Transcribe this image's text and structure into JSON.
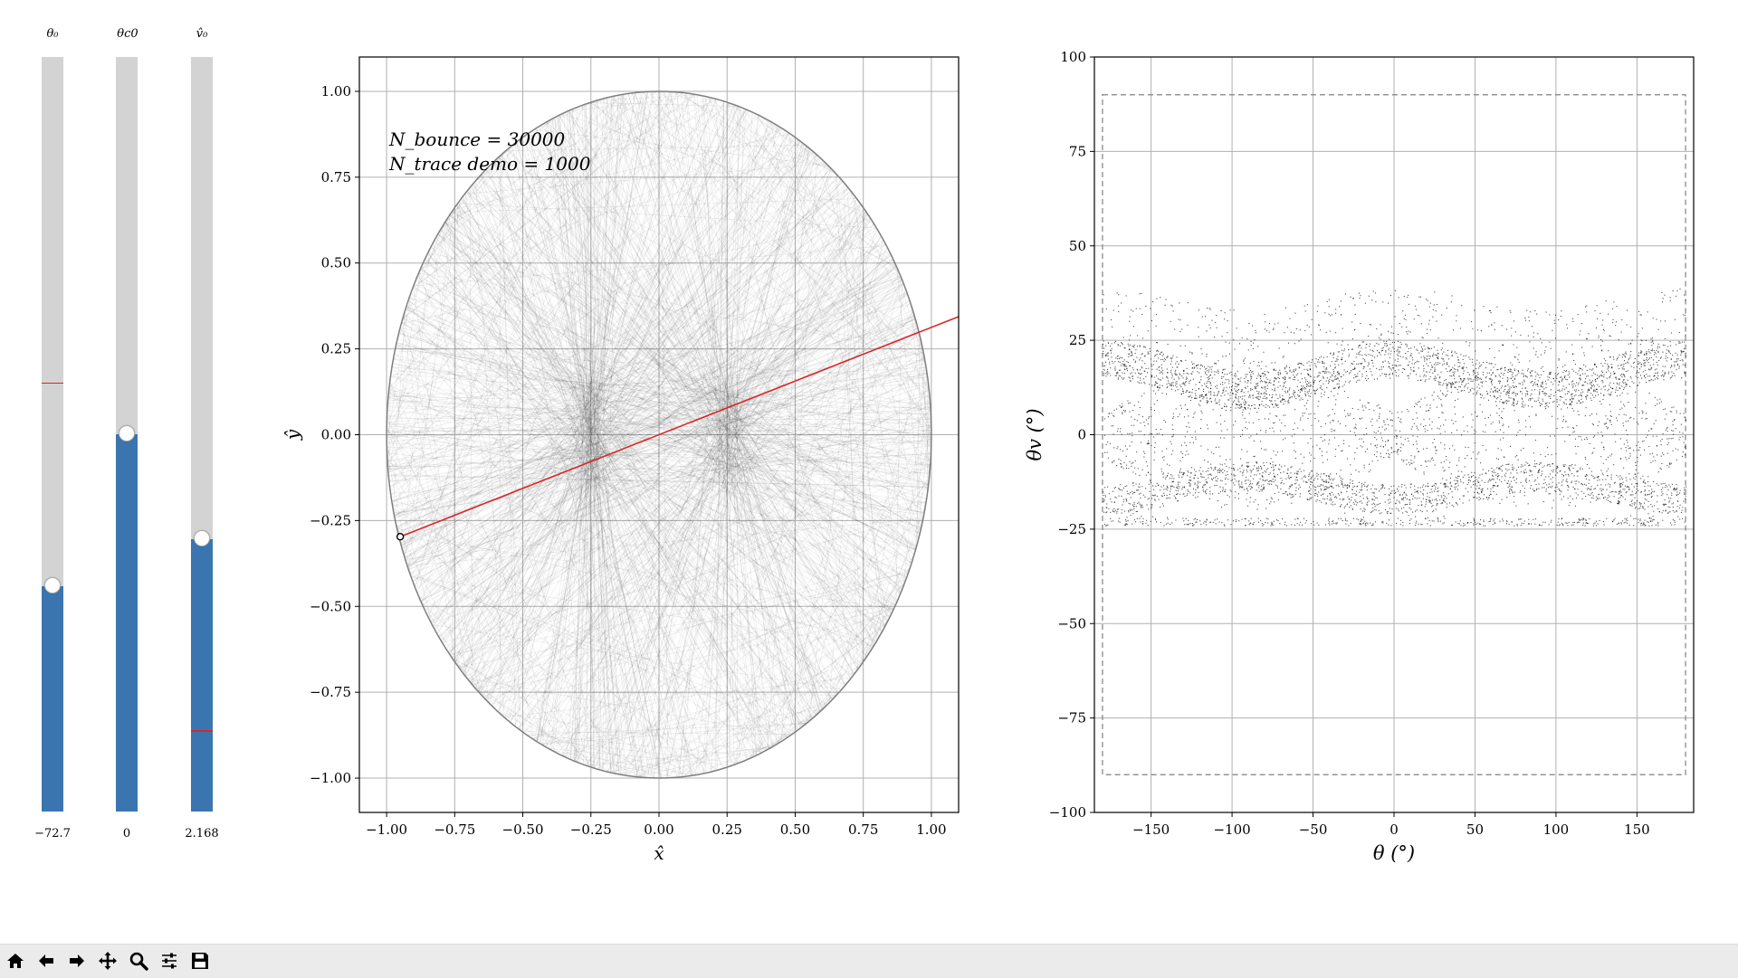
{
  "sliders": [
    {
      "label": "θ₀",
      "value_text": "−72.7",
      "fill_fraction": 0.298,
      "initial_fraction": 0.567
    },
    {
      "label": "θc0",
      "value_text": "0",
      "fill_fraction": 0.5,
      "initial_fraction": null
    },
    {
      "label": "v̂₀",
      "value_text": "2.168",
      "fill_fraction": 0.361,
      "initial_fraction": 0.106
    }
  ],
  "billiard": {
    "annotation_line1": "N_bounce = 30000",
    "annotation_line2": "N_trace demo = 1000",
    "xlabel": "x̂",
    "ylabel": "ŷ",
    "xticks": [
      "−1.00",
      "−0.75",
      "−0.50",
      "−0.25",
      "0.00",
      "0.25",
      "0.50",
      "0.75",
      "1.00"
    ],
    "yticks": [
      "1.00",
      "0.75",
      "0.50",
      "0.25",
      "0.00",
      "−0.25",
      "−0.50",
      "−0.75",
      "−1.00"
    ],
    "start_point": [
      -0.95,
      -0.297
    ]
  },
  "chart_data": {
    "type": "scatter",
    "title": "",
    "xlabel": "θ (°)",
    "ylabel": "θv (°)",
    "xlim": [
      -185,
      185
    ],
    "ylim": [
      -100,
      100
    ],
    "xticks": [
      -150,
      -100,
      -50,
      0,
      50,
      100,
      150
    ],
    "yticks": [
      -100,
      -75,
      -50,
      -25,
      0,
      25,
      50,
      75,
      100
    ],
    "xtick_labels": [
      "−150",
      "−100",
      "−50",
      "0",
      "50",
      "100",
      "150"
    ],
    "ytick_labels": [
      "−100",
      "−75",
      "−50",
      "−25",
      "0",
      "25",
      "50",
      "75",
      "100"
    ],
    "boundary_box": {
      "x": [
        -180,
        180
      ],
      "y": [
        -90,
        90
      ]
    },
    "grid": true
  },
  "toolbar": [
    {
      "name": "home-icon"
    },
    {
      "name": "back-icon"
    },
    {
      "name": "forward-icon"
    },
    {
      "name": "pan-icon"
    },
    {
      "name": "zoom-icon"
    },
    {
      "name": "configure-subplots-icon"
    },
    {
      "name": "save-icon"
    }
  ],
  "colors": {
    "slider_fill": "#3b75af",
    "trajectory": "#d62728",
    "track": "#d3d3d3"
  }
}
